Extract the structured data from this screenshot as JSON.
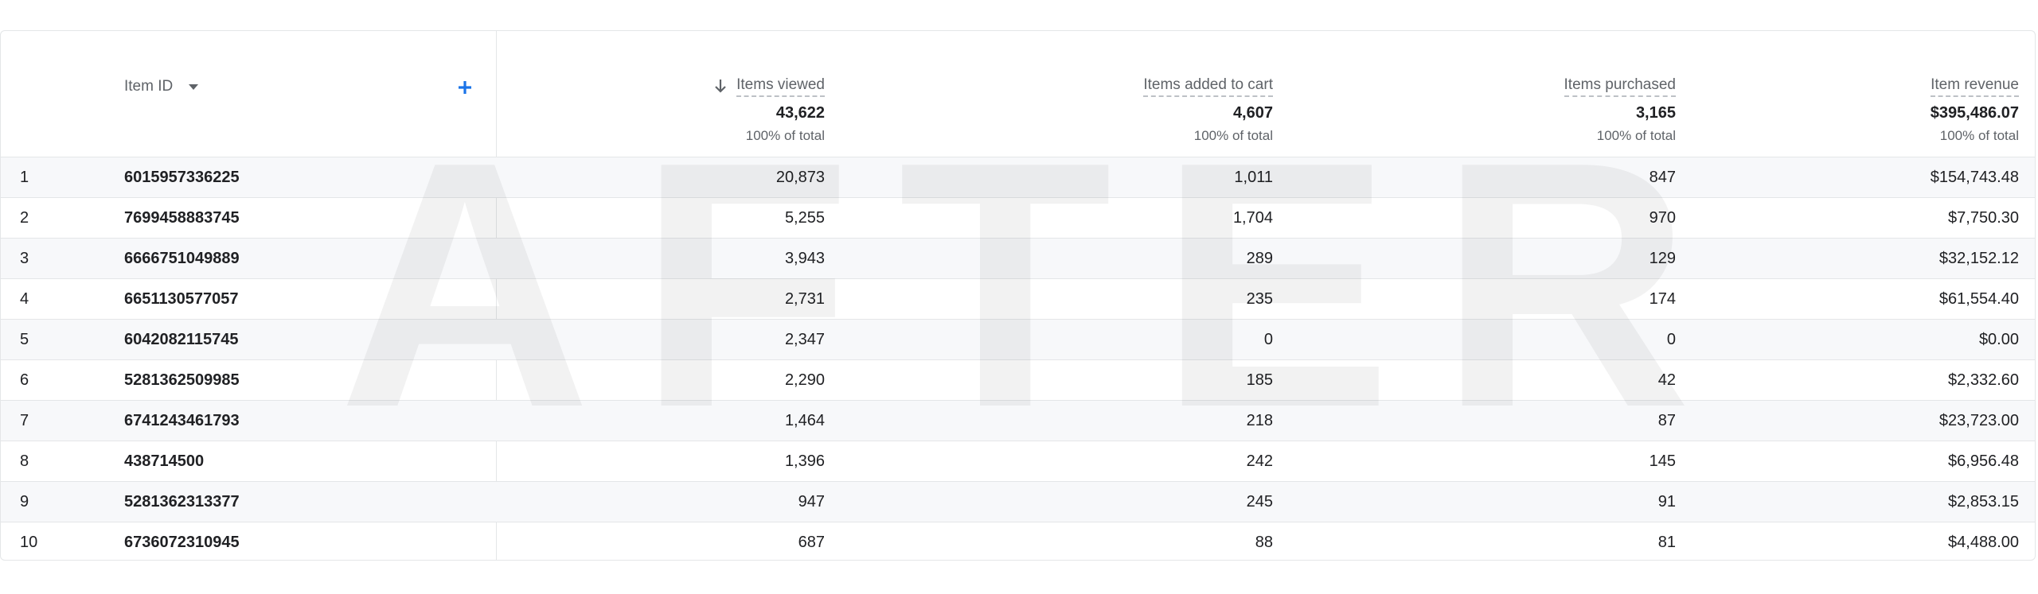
{
  "header": {
    "columns": [
      "Item ID",
      "Items viewed",
      "Items added to cart",
      "Items purchased",
      "Item revenue"
    ]
  },
  "totals": {
    "values": [
      "43,622",
      "4,607",
      "3,165",
      "$395,486.07"
    ],
    "notes": [
      "100% of total",
      "100% of total",
      "100% of total",
      "100% of total"
    ]
  },
  "table": {
    "rows": [
      [
        "1",
        "6015957336225",
        "20,873",
        "1,011",
        "847",
        "$154,743.48"
      ],
      [
        "2",
        "7699458883745",
        "5,255",
        "1,704",
        "970",
        "$7,750.30"
      ],
      [
        "3",
        "6666751049889",
        "3,943",
        "289",
        "129",
        "$32,152.12"
      ],
      [
        "4",
        "6651130577057",
        "2,731",
        "235",
        "174",
        "$61,554.40"
      ],
      [
        "5",
        "6042082115745",
        "2,347",
        "0",
        "0",
        "$0.00"
      ],
      [
        "6",
        "5281362509985",
        "2,290",
        "185",
        "42",
        "$2,332.60"
      ],
      [
        "7",
        "6741243461793",
        "1,464",
        "218",
        "87",
        "$23,723.00"
      ],
      [
        "8",
        "438714500",
        "1,396",
        "242",
        "145",
        "$6,956.48"
      ],
      [
        "9",
        "5281362313377",
        "947",
        "245",
        "91",
        "$2,853.15"
      ],
      [
        "10",
        "6736072310945",
        "687",
        "88",
        "81",
        "$4,488.00"
      ]
    ]
  },
  "watermark": "AFTER"
}
